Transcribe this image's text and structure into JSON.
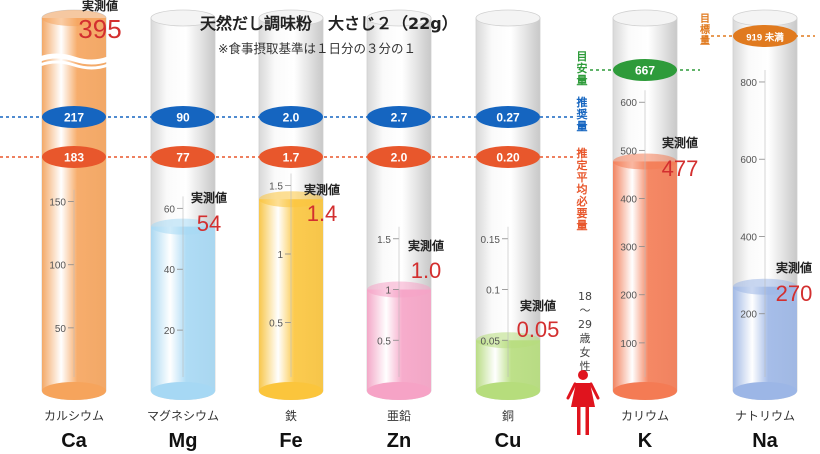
{
  "title": "天然だし調味粉　大さじ２（22g）",
  "subtitle": "※食事摂取基準は１日分の３分の１",
  "line_labels": {
    "meyasu": "目安量",
    "suisho": "推奨量",
    "suitei": "推定平均必要量",
    "mokuhyo": "目標量"
  },
  "reference_group": "18〜29歳女性",
  "measured_label": "実測値",
  "colors": {
    "suisho": "#1565c0",
    "suitei": "#e8572c",
    "meyasu": "#2e9b3a",
    "mokuhyo": "#e07a1f",
    "measured_value": "#d32f2f",
    "female_icon": "#e0141e"
  },
  "icons": [
    "female-person-icon"
  ],
  "chart_data": {
    "type": "bar",
    "title": "天然だし調味粉　大さじ２（22g）",
    "subtitle": "※食事摂取基準は１日分の３分の１",
    "categories": [
      "Ca",
      "Mg",
      "Fe",
      "Zn",
      "Cu",
      "K",
      "Na"
    ],
    "category_names_jp": [
      "カルシウム",
      "マグネシウム",
      "鉄",
      "亜鉛",
      "銅",
      "カリウム",
      "ナトリウム"
    ],
    "series": [
      {
        "name": "実測値",
        "values": [
          395,
          54,
          1.4,
          1.0,
          0.05,
          477,
          270
        ],
        "labels": [
          "395",
          "54",
          "1.4",
          "1.0",
          "0.05",
          "477",
          "270"
        ]
      },
      {
        "name": "推奨量",
        "values": [
          217,
          90,
          2.0,
          2.7,
          0.27,
          null,
          null
        ],
        "labels": [
          "217",
          "90",
          "2.0",
          "2.7",
          "0.27",
          "",
          ""
        ]
      },
      {
        "name": "推定平均必要量",
        "values": [
          183,
          77,
          1.7,
          2.0,
          0.2,
          null,
          null
        ],
        "labels": [
          "183",
          "77",
          "1.7",
          "2.0",
          "0.20",
          "",
          ""
        ]
      },
      {
        "name": "目安量",
        "values": [
          null,
          null,
          null,
          null,
          null,
          667,
          null
        ],
        "labels": [
          "",
          "",
          "",
          "",
          "",
          "667",
          ""
        ]
      },
      {
        "name": "目標量",
        "values": [
          null,
          null,
          null,
          null,
          null,
          null,
          919
        ],
        "labels": [
          "",
          "",
          "",
          "",
          "",
          "",
          "919 未満"
        ]
      }
    ],
    "axes": [
      {
        "category": "Ca",
        "ticks": [
          50,
          100,
          150
        ],
        "ylim": [
          0,
          260
        ],
        "broken": true
      },
      {
        "category": "Mg",
        "ticks": [
          20,
          40,
          60
        ],
        "ylim": [
          0,
          108
        ]
      },
      {
        "category": "Fe",
        "ticks": [
          0.5,
          1.0,
          1.5
        ],
        "ylim": [
          0,
          2.4
        ]
      },
      {
        "category": "Zn",
        "ticks": [
          0.5,
          1.0,
          1.5
        ],
        "ylim": [
          0,
          3.24
        ]
      },
      {
        "category": "Cu",
        "ticks": [
          0.05,
          0.1,
          0.15
        ],
        "ylim": [
          0,
          0.324
        ]
      },
      {
        "category": "K",
        "ticks": [
          100,
          200,
          300,
          400,
          500,
          600
        ],
        "ylim": [
          0,
          720
        ]
      },
      {
        "category": "Na",
        "ticks": [
          200,
          400,
          600,
          800
        ],
        "ylim": [
          0,
          1000
        ]
      }
    ],
    "grid": false,
    "legend": "right"
  }
}
